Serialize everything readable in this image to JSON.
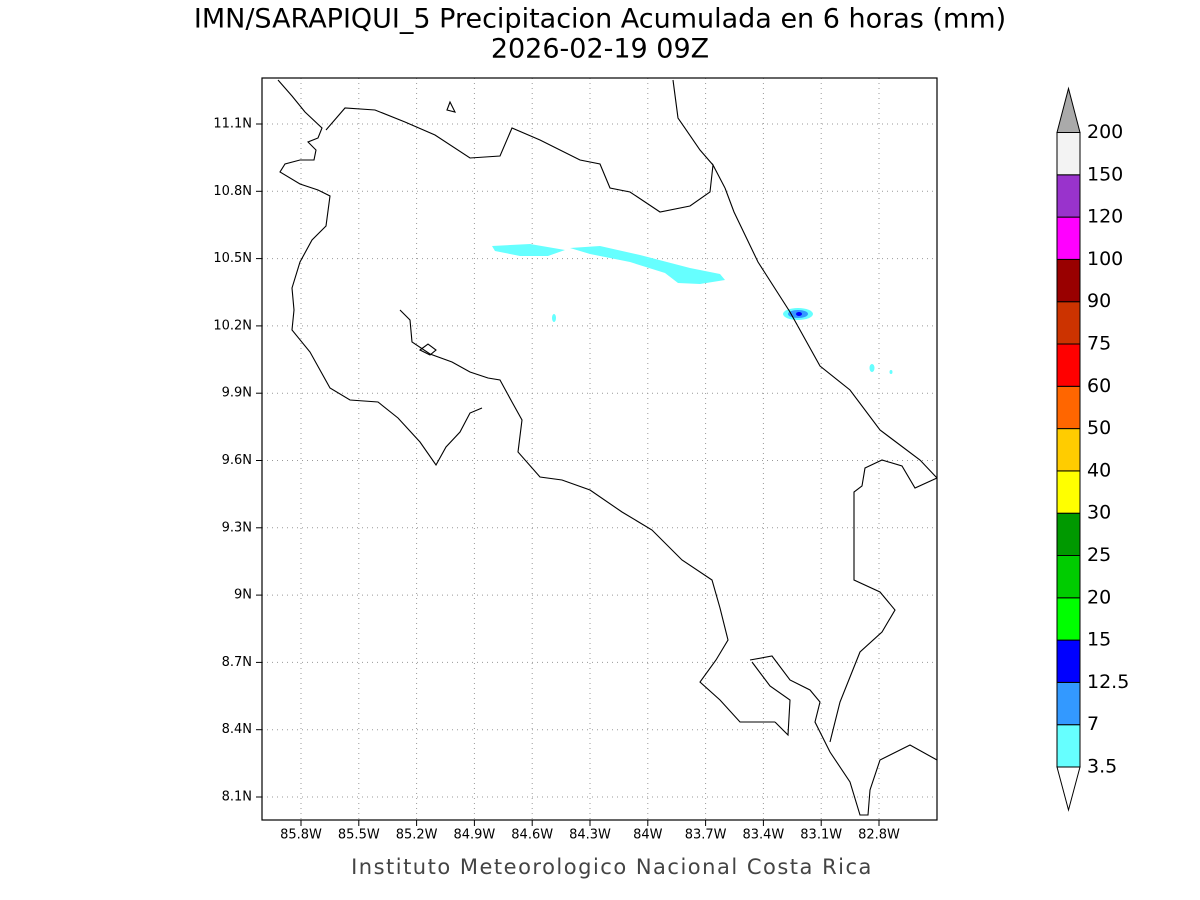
{
  "header": {
    "title": "IMN/SARAPIQUI_5 Precipitacion Acumulada en 6 horas (mm)",
    "subtitle": "2026-02-19 09Z"
  },
  "map": {
    "lat_labels": [
      "11.1N",
      "10.8N",
      "10.5N",
      "10.2N",
      "9.9N",
      "9.6N",
      "9.3N",
      "9N",
      "8.7N",
      "8.4N",
      "8.1N"
    ],
    "lon_labels": [
      "85.8W",
      "85.5W",
      "85.2W",
      "84.9W",
      "84.6W",
      "84.3W",
      "84W",
      "83.7W",
      "83.4W",
      "83.1W",
      "82.8W"
    ]
  },
  "colorbar": {
    "labels": [
      "3.5",
      "7",
      "12.5",
      "15",
      "20",
      "25",
      "30",
      "40",
      "50",
      "60",
      "75",
      "90",
      "100",
      "120",
      "150",
      "200"
    ],
    "colors": [
      "#66ffff",
      "#3399ff",
      "#0000ff",
      "#00ff00",
      "#00cc00",
      "#009900",
      "#ffff00",
      "#ffcc00",
      "#ff6600",
      "#ff0000",
      "#cc3300",
      "#990000",
      "#ff00ff",
      "#9933cc",
      "#f3f3f3"
    ],
    "under_color": "#ffffff",
    "over_color": "#aaaaaa"
  },
  "footer": "Instituto Meteorologico Nacional Costa Rica"
}
